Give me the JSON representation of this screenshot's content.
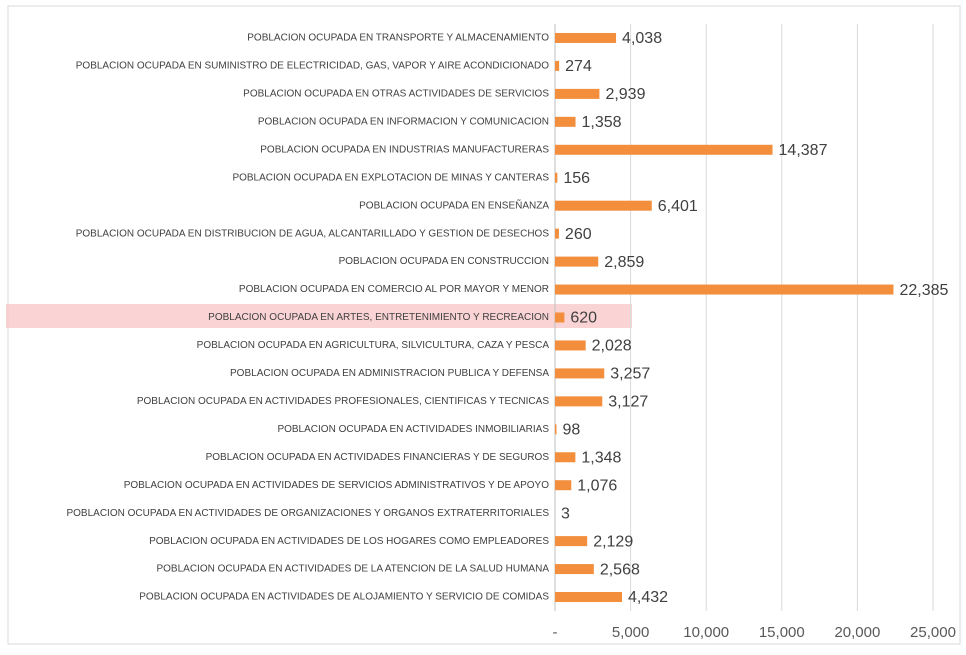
{
  "chart_data": {
    "type": "hbar",
    "categories": [
      "POBLACION OCUPADA EN TRANSPORTE Y ALMACENAMIENTO",
      "POBLACION OCUPADA EN SUMINISTRO DE ELECTRICIDAD, GAS, VAPOR Y AIRE ACONDICIONADO",
      "POBLACION OCUPADA EN OTRAS ACTIVIDADES DE SERVICIOS",
      "POBLACION OCUPADA EN INFORMACION Y COMUNICACION",
      "POBLACION OCUPADA EN INDUSTRIAS MANUFACTURERAS",
      "POBLACION OCUPADA EN EXPLOTACION DE MINAS Y CANTERAS",
      "POBLACION OCUPADA EN ENSEÑANZA",
      "POBLACION OCUPADA EN DISTRIBUCION DE AGUA, ALCANTARILLADO Y GESTION DE DESECHOS",
      "POBLACION OCUPADA EN CONSTRUCCION",
      "POBLACION OCUPADA EN COMERCIO AL POR MAYOR Y MENOR",
      "POBLACION OCUPADA EN ARTES, ENTRETENIMIENTO Y RECREACION",
      "POBLACION OCUPADA EN AGRICULTURA, SILVICULTURA, CAZA Y PESCA",
      "POBLACION OCUPADA EN ADMINISTRACION PUBLICA Y DEFENSA",
      "POBLACION OCUPADA EN ACTIVIDADES PROFESIONALES, CIENTIFICAS Y TECNICAS",
      "POBLACION OCUPADA EN ACTIVIDADES INMOBILIARIAS",
      "POBLACION OCUPADA EN ACTIVIDADES FINANCIERAS Y DE SEGUROS",
      "POBLACION OCUPADA EN ACTIVIDADES DE SERVICIOS ADMINISTRATIVOS Y DE APOYO",
      "POBLACION OCUPADA EN ACTIVIDADES DE ORGANIZACIONES Y ORGANOS EXTRATERRITORIALES",
      "POBLACION OCUPADA EN ACTIVIDADES DE LOS HOGARES COMO EMPLEADORES",
      "POBLACION OCUPADA EN ACTIVIDADES DE LA ATENCION DE LA SALUD HUMANA",
      "POBLACION OCUPADA EN ACTIVIDADES DE ALOJAMIENTO Y SERVICIO DE COMIDAS"
    ],
    "values": [
      4038,
      274,
      2939,
      1358,
      14387,
      156,
      6401,
      260,
      2859,
      22385,
      620,
      2028,
      3257,
      3127,
      98,
      1348,
      1076,
      3,
      2129,
      2568,
      4432
    ],
    "value_labels": [
      "4,038",
      "274",
      "2,939",
      "1,358",
      "14,387",
      "156",
      "6,401",
      "260",
      "2,859",
      "22,385",
      "620",
      "2,028",
      "3,257",
      "3,127",
      "98",
      "1,348",
      "1,076",
      "3",
      "2,129",
      "2,568",
      "4,432"
    ],
    "color": "#f28e3c",
    "xlim": [
      0,
      25000
    ],
    "xticks": [
      {
        "value": 0,
        "label": "-"
      },
      {
        "value": 5000,
        "label": "5,000"
      },
      {
        "value": 10000,
        "label": "10,000"
      },
      {
        "value": 15000,
        "label": "15,000"
      },
      {
        "value": 20000,
        "label": "20,000"
      },
      {
        "value": 25000,
        "label": "25,000"
      }
    ],
    "grid": true
  }
}
